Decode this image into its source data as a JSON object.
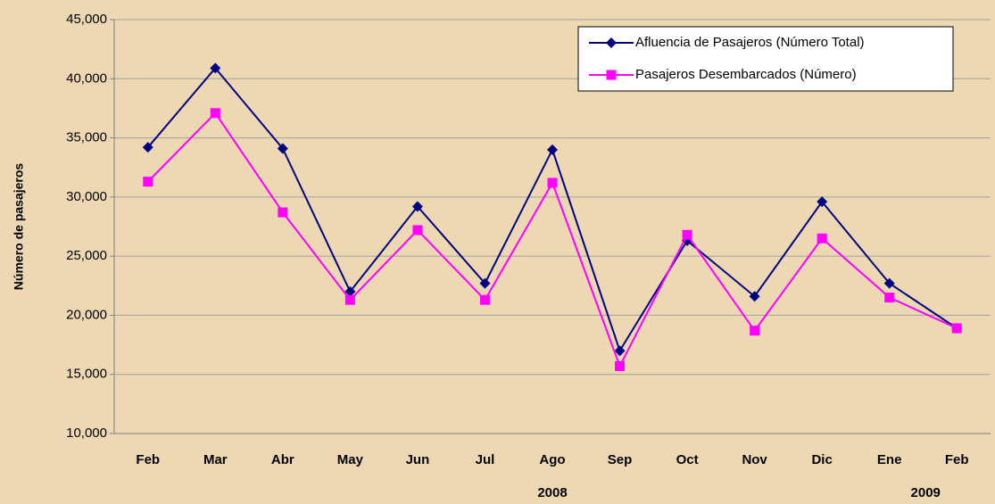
{
  "chart_data": {
    "type": "line",
    "y_label": "Número de pasajeros",
    "categories": [
      "Feb",
      "Mar",
      "Abr",
      "May",
      "Jun",
      "Jul",
      "Ago",
      "Sep",
      "Oct",
      "Nov",
      "Dic",
      "Ene",
      "Feb"
    ],
    "year_labels": [
      "2008",
      "2009"
    ],
    "series": [
      {
        "name": "Afluencia de Pasajeros (Número Total)",
        "color": "#000080",
        "marker": "diamond",
        "values": [
          34200,
          40900,
          34100,
          22000,
          29200,
          22700,
          34000,
          17000,
          26300,
          21600,
          29600,
          22700,
          18900
        ]
      },
      {
        "name": "Pasajeros Desembarcados (Número)",
        "color": "#ff00ff",
        "marker": "square",
        "values": [
          31300,
          37100,
          28700,
          21300,
          27200,
          21300,
          31200,
          15700,
          26800,
          18700,
          26500,
          21500,
          18900
        ]
      }
    ],
    "ylim": [
      10000,
      45000
    ],
    "yticks": [
      {
        "value": 10000,
        "label": "10,000"
      },
      {
        "value": 15000,
        "label": "15,000"
      },
      {
        "value": 20000,
        "label": "20,000"
      },
      {
        "value": 25000,
        "label": "25,000"
      },
      {
        "value": 30000,
        "label": "30,000"
      },
      {
        "value": 35000,
        "label": "35,000"
      },
      {
        "value": 40000,
        "label": "40,000"
      },
      {
        "value": 45000,
        "label": "45,000"
      }
    ],
    "grid": true,
    "legend": "upper right"
  }
}
